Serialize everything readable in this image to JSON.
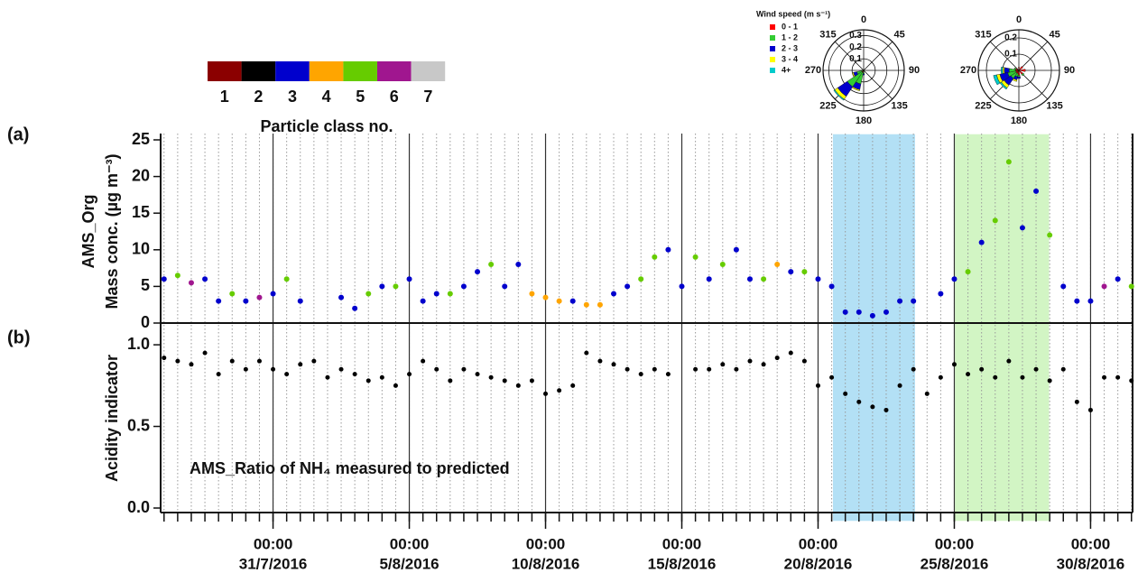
{
  "chart_data": [
    {
      "type": "scatter",
      "panel_label": "(a)",
      "ylabel": [
        "AMS_Org",
        "Mass conc. (µg m⁻³)"
      ],
      "xlim": [
        "2016-07-26T21:00",
        "2016-08-31T13:00"
      ],
      "xticks": [
        {
          "value": "2016-07-31T00:00",
          "label": [
            "00:00",
            "31/7/2016"
          ]
        },
        {
          "value": "2016-08-05T00:00",
          "label": [
            "00:00",
            "5/8/2016"
          ]
        },
        {
          "value": "2016-08-10T00:00",
          "label": [
            "00:00",
            "10/8/2016"
          ]
        },
        {
          "value": "2016-08-15T00:00",
          "label": [
            "00:00",
            "15/8/2016"
          ]
        },
        {
          "value": "2016-08-20T00:00",
          "label": [
            "00:00",
            "20/8/2016"
          ]
        },
        {
          "value": "2016-08-25T00:00",
          "label": [
            "00:00",
            "25/8/2016"
          ]
        },
        {
          "value": "2016-08-30T00:00",
          "label": [
            "00:00",
            "30/8/2016"
          ]
        }
      ],
      "minor_grid_hours": 12,
      "ylim": [
        0,
        25
      ],
      "yticks": [
        0,
        5,
        10,
        15,
        20,
        25
      ],
      "highlights": [
        {
          "x": [
            "2016-08-20T12:30",
            "2016-08-23T14:00"
          ],
          "color": "#b3e0f5"
        },
        {
          "x": [
            "2016-08-25T00:00",
            "2016-08-28T12:00"
          ],
          "color": "#d2f5c4"
        }
      ],
      "x": [
        "2016-07-27T00:00",
        "2016-07-27T12:00",
        "2016-07-28T00:00",
        "2016-07-28T12:00",
        "2016-07-29T00:00",
        "2016-07-29T12:00",
        "2016-07-30T00:00",
        "2016-07-30T12:00",
        "2016-07-31T00:00",
        "2016-07-31T12:00",
        "2016-08-01T00:00",
        "2016-08-01T12:00",
        "2016-08-02T00:00",
        "2016-08-02T12:00",
        "2016-08-03T00:00",
        "2016-08-03T12:00",
        "2016-08-04T00:00",
        "2016-08-04T12:00",
        "2016-08-05T00:00",
        "2016-08-05T12:00",
        "2016-08-06T00:00",
        "2016-08-06T12:00",
        "2016-08-07T00:00",
        "2016-08-07T12:00",
        "2016-08-08T00:00",
        "2016-08-08T12:00",
        "2016-08-09T00:00",
        "2016-08-09T12:00",
        "2016-08-10T00:00",
        "2016-08-10T12:00",
        "2016-08-11T00:00",
        "2016-08-11T12:00",
        "2016-08-12T00:00",
        "2016-08-12T12:00",
        "2016-08-13T00:00",
        "2016-08-13T12:00",
        "2016-08-14T00:00",
        "2016-08-14T12:00",
        "2016-08-15T00:00",
        "2016-08-15T12:00",
        "2016-08-16T00:00",
        "2016-08-16T12:00",
        "2016-08-17T00:00",
        "2016-08-17T12:00",
        "2016-08-18T00:00",
        "2016-08-18T12:00",
        "2016-08-19T00:00",
        "2016-08-19T12:00",
        "2016-08-20T00:00",
        "2016-08-20T12:00",
        "2016-08-21T00:00",
        "2016-08-21T12:00",
        "2016-08-22T00:00",
        "2016-08-22T12:00",
        "2016-08-23T00:00",
        "2016-08-23T12:00",
        "2016-08-24T00:00",
        "2016-08-24T12:00",
        "2016-08-25T00:00",
        "2016-08-25T12:00",
        "2016-08-26T00:00",
        "2016-08-26T12:00",
        "2016-08-27T00:00",
        "2016-08-27T12:00",
        "2016-08-28T00:00",
        "2016-08-28T12:00",
        "2016-08-29T00:00",
        "2016-08-29T12:00",
        "2016-08-30T00:00",
        "2016-08-30T12:00",
        "2016-08-31T00:00",
        "2016-08-31T12:00"
      ],
      "values": [
        6,
        6.5,
        5.5,
        6,
        3,
        4,
        3,
        3.5,
        4,
        6,
        3,
        null,
        null,
        3.5,
        2,
        4,
        5,
        5,
        6,
        3,
        4,
        4,
        5,
        7,
        8,
        5,
        8,
        4,
        3.5,
        3,
        3,
        2.5,
        2.5,
        4,
        5,
        6,
        9,
        10,
        5,
        9,
        6,
        8,
        10,
        6,
        6,
        8,
        7,
        7,
        6,
        5,
        1.5,
        1.5,
        1,
        1.5,
        3,
        3,
        null,
        4,
        6,
        7,
        11,
        14,
        22,
        13,
        18,
        12,
        5,
        3,
        3,
        5,
        6,
        5
      ],
      "classes": [
        3,
        5,
        6,
        3,
        3,
        5,
        3,
        6,
        3,
        5,
        3,
        null,
        null,
        3,
        3,
        5,
        3,
        5,
        3,
        3,
        3,
        5,
        3,
        3,
        5,
        3,
        3,
        4,
        4,
        4,
        3,
        4,
        4,
        3,
        3,
        5,
        5,
        3,
        3,
        5,
        3,
        5,
        3,
        3,
        5,
        4,
        3,
        5,
        3,
        3,
        3,
        3,
        3,
        3,
        3,
        3,
        null,
        3,
        3,
        5,
        3,
        5,
        5,
        3,
        3,
        5,
        3,
        3,
        3,
        6,
        3,
        5
      ],
      "class_legend": {
        "title": "Particle class no.",
        "classes": [
          1,
          2,
          3,
          4,
          5,
          6,
          7
        ],
        "colors": [
          "#8b0000",
          "#000000",
          "#0000cd",
          "#ffa500",
          "#66cc00",
          "#a0168f",
          "#c8c8c8"
        ]
      }
    },
    {
      "type": "scatter",
      "panel_label": "(b)",
      "ylabel": [
        "Acidity indicator"
      ],
      "annotation": "AMS_Ratio of NH₄ measured to predicted",
      "xlim": [
        "2016-07-26T21:00",
        "2016-08-31T13:00"
      ],
      "color": "#000000",
      "ylim": [
        0,
        1.1
      ],
      "yticks": [
        {
          "value": 0,
          "label": "0.0"
        },
        0.5,
        {
          "value": 1,
          "label": "1.0"
        }
      ],
      "x": [
        "2016-07-27T00:00",
        "2016-07-27T12:00",
        "2016-07-28T00:00",
        "2016-07-28T12:00",
        "2016-07-29T00:00",
        "2016-07-29T12:00",
        "2016-07-30T00:00",
        "2016-07-30T12:00",
        "2016-07-31T00:00",
        "2016-07-31T12:00",
        "2016-08-01T00:00",
        "2016-08-01T12:00",
        "2016-08-02T00:00",
        "2016-08-02T12:00",
        "2016-08-03T00:00",
        "2016-08-03T12:00",
        "2016-08-04T00:00",
        "2016-08-04T12:00",
        "2016-08-05T00:00",
        "2016-08-05T12:00",
        "2016-08-06T00:00",
        "2016-08-06T12:00",
        "2016-08-07T00:00",
        "2016-08-07T12:00",
        "2016-08-08T00:00",
        "2016-08-08T12:00",
        "2016-08-09T00:00",
        "2016-08-09T12:00",
        "2016-08-10T00:00",
        "2016-08-10T12:00",
        "2016-08-11T00:00",
        "2016-08-11T12:00",
        "2016-08-12T00:00",
        "2016-08-12T12:00",
        "2016-08-13T00:00",
        "2016-08-13T12:00",
        "2016-08-14T00:00",
        "2016-08-14T12:00",
        "2016-08-15T00:00",
        "2016-08-15T12:00",
        "2016-08-16T00:00",
        "2016-08-16T12:00",
        "2016-08-17T00:00",
        "2016-08-17T12:00",
        "2016-08-18T00:00",
        "2016-08-18T12:00",
        "2016-08-19T00:00",
        "2016-08-19T12:00",
        "2016-08-20T00:00",
        "2016-08-20T12:00",
        "2016-08-21T00:00",
        "2016-08-21T12:00",
        "2016-08-22T00:00",
        "2016-08-22T12:00",
        "2016-08-23T00:00",
        "2016-08-23T12:00",
        "2016-08-24T00:00",
        "2016-08-24T12:00",
        "2016-08-25T00:00",
        "2016-08-25T12:00",
        "2016-08-26T00:00",
        "2016-08-26T12:00",
        "2016-08-27T00:00",
        "2016-08-27T12:00",
        "2016-08-28T00:00",
        "2016-08-28T12:00",
        "2016-08-29T00:00",
        "2016-08-29T12:00",
        "2016-08-30T00:00",
        "2016-08-30T12:00",
        "2016-08-31T00:00",
        "2016-08-31T12:00"
      ],
      "values": [
        0.92,
        0.9,
        0.88,
        0.95,
        0.82,
        0.9,
        0.85,
        0.9,
        0.85,
        0.82,
        0.88,
        0.9,
        0.8,
        0.85,
        0.82,
        0.78,
        0.8,
        0.75,
        0.82,
        0.9,
        0.85,
        0.78,
        0.85,
        0.82,
        0.8,
        0.78,
        0.75,
        0.78,
        0.7,
        0.72,
        0.75,
        0.95,
        0.9,
        0.88,
        0.85,
        0.82,
        0.85,
        0.82,
        null,
        0.85,
        0.85,
        0.88,
        0.85,
        0.9,
        0.88,
        0.92,
        0.95,
        0.9,
        0.75,
        0.8,
        0.7,
        0.65,
        0.62,
        0.6,
        0.75,
        0.85,
        0.7,
        0.8,
        0.88,
        0.82,
        0.85,
        0.8,
        0.9,
        0.8,
        0.85,
        0.78,
        0.85,
        0.65,
        0.6,
        0.8,
        0.8,
        0.78
      ]
    },
    {
      "type": "windrose",
      "legend_title": "Wind speed (m s⁻¹)",
      "rlim": [
        0,
        0.35
      ],
      "rticks": [
        0.1,
        0.2,
        0.3
      ],
      "thetaticks": [
        0,
        45,
        90,
        135,
        180,
        225,
        270,
        315
      ],
      "directions": [
        180,
        202.5,
        225,
        247.5,
        270
      ],
      "series": [
        {
          "name": "0 - 1",
          "color": "#ff0000",
          "values": [
            0.01,
            0.02,
            0.02,
            0.01,
            0.01
          ]
        },
        {
          "name": "1 - 2",
          "color": "#33cc33",
          "values": [
            0.02,
            0.1,
            0.15,
            0.05,
            0.01
          ]
        },
        {
          "name": "2 - 3",
          "color": "#0000cd",
          "values": [
            0.01,
            0.05,
            0.1,
            0.03,
            0
          ]
        },
        {
          "name": "3 - 4",
          "color": "#ffff00",
          "values": [
            0,
            0.01,
            0.03,
            0.01,
            0
          ]
        },
        {
          "name": "4+",
          "color": "#00cccc",
          "values": [
            0,
            0,
            0.01,
            0,
            0
          ]
        }
      ]
    },
    {
      "type": "windrose",
      "rlim": [
        0,
        0.25
      ],
      "rticks": [
        0.1,
        0.2
      ],
      "thetaticks": [
        0,
        45,
        90,
        135,
        180,
        225,
        270,
        315
      ],
      "directions": [
        0,
        45,
        90,
        135,
        180,
        202.5,
        225,
        247.5,
        270,
        292.5
      ],
      "series": [
        {
          "color": "#ff0000",
          "values": [
            0.02,
            0.03,
            0.04,
            0.03,
            0.03,
            0.02,
            0.02,
            0.02,
            0.02,
            0.02
          ]
        },
        {
          "color": "#33cc33",
          "values": [
            0,
            0,
            0,
            0.01,
            0.01,
            0.02,
            0.04,
            0.05,
            0.04,
            0.01
          ]
        },
        {
          "color": "#0000cd",
          "values": [
            0,
            0,
            0,
            0,
            0.01,
            0.02,
            0.05,
            0.05,
            0.03,
            0
          ]
        },
        {
          "color": "#ffff00",
          "values": [
            0,
            0,
            0,
            0,
            0,
            0.01,
            0.02,
            0.02,
            0.01,
            0
          ]
        },
        {
          "color": "#00cccc",
          "values": [
            0,
            0,
            0,
            0,
            0,
            0,
            0.01,
            0.02,
            0.01,
            0
          ]
        }
      ]
    }
  ]
}
